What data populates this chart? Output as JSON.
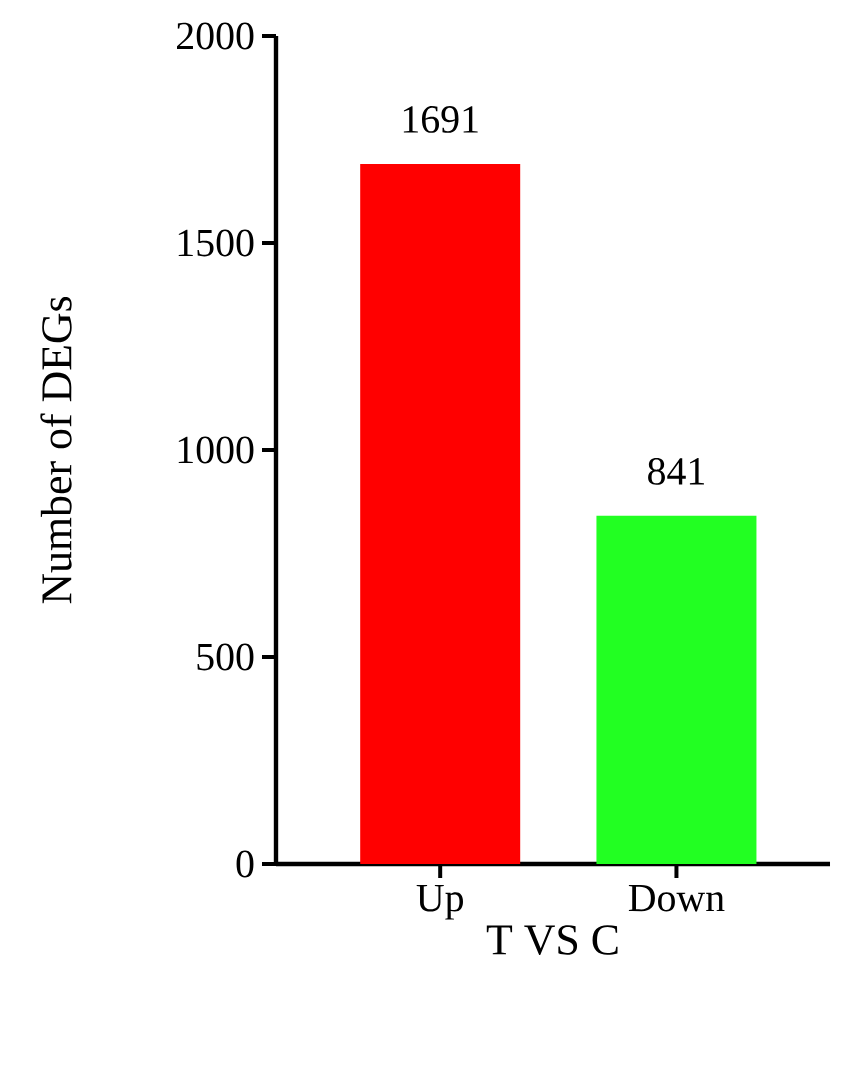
{
  "chart_data": {
    "type": "bar",
    "xlabel": "T VS C",
    "ylabel": "Number of DEGs",
    "categories": [
      "Up",
      "Down"
    ],
    "values": [
      1691,
      841
    ],
    "colors": [
      "#ff0000",
      "#22ff22"
    ],
    "ylim": [
      0,
      2000
    ],
    "yticks": [
      0,
      500,
      1000,
      1500,
      2000
    ],
    "data_labels": true,
    "grid": false
  }
}
